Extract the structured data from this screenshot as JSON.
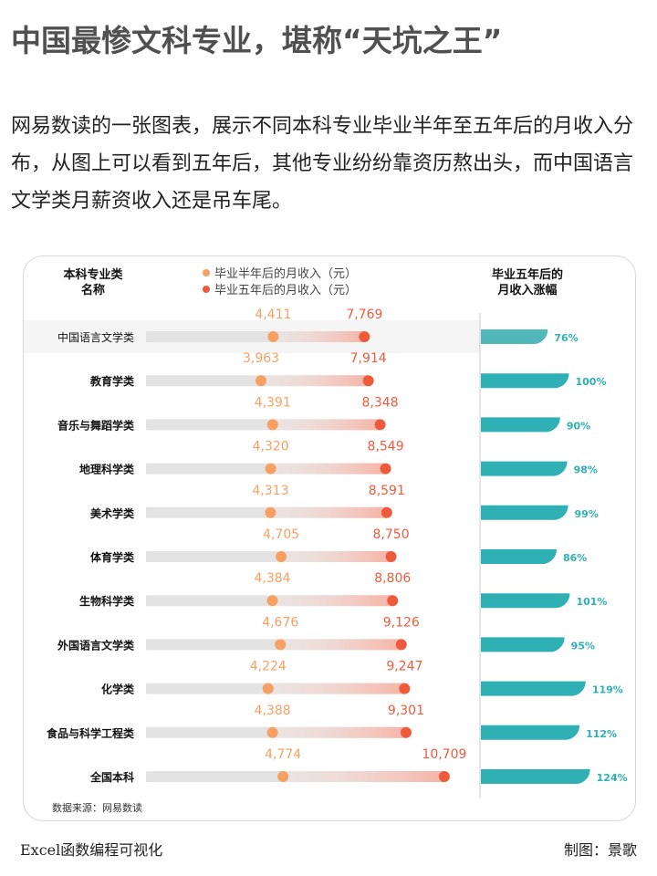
{
  "title": "中国最惨文科专业，堪称“天坑之王”",
  "description": "网易数读的一张图表，展示不同本科专业毕业半年至五年后的月收入分布，从图上可以看到五年后，其他专业纷纷靠资历熬出头，而中国语言文学类月薪资收入还是吊车尾。",
  "footer": {
    "source": "数据来源：网易数读",
    "brand": "Excel函数编程可视化",
    "author": "制图：景歌"
  },
  "colors": {
    "half_year": "#f7a063",
    "five_year": "#f05a3c",
    "growth": "#2eb0b5",
    "highlight_row": "#f5f5f5"
  },
  "chart_data": {
    "type": "dumbbell",
    "category_header": "本科专业类\n名称",
    "growth_header": "毕业五年后的\n月收入涨幅",
    "legend_position": "top",
    "highlighted_category": "中国语言文学类",
    "categories": [
      "中国语言文学类",
      "教育学类",
      "音乐与舞蹈学类",
      "地理科学类",
      "美术学类",
      "体育学类",
      "生物科学类",
      "外国语言文学类",
      "化学类",
      "食品与科学工程类",
      "全国本科"
    ],
    "series": [
      {
        "name": "毕业半年后的月收入（元）",
        "values": [
          4411,
          3963,
          4391,
          4320,
          4313,
          4705,
          4384,
          4676,
          4224,
          4388,
          4774
        ]
      },
      {
        "name": "毕业五年后的月收入（元）",
        "values": [
          7769,
          7914,
          8348,
          8549,
          8591,
          8750,
          8806,
          9126,
          9247,
          9301,
          10709
        ]
      }
    ],
    "growth_percent": [
      76,
      100,
      90,
      98,
      99,
      86,
      101,
      95,
      119,
      112,
      124
    ]
  }
}
